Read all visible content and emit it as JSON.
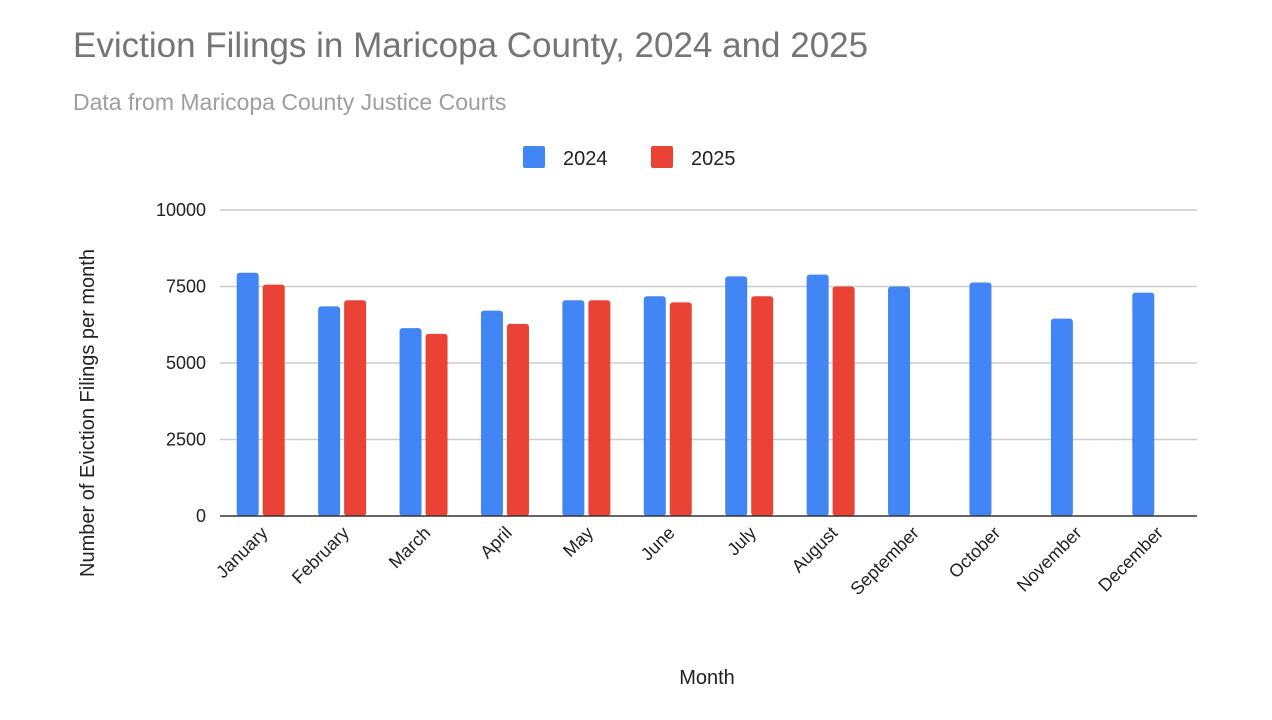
{
  "chart_data": {
    "type": "bar",
    "title": "Eviction Filings in Maricopa County, 2024 and 2025",
    "subtitle": "Data from Maricopa County Justice Courts",
    "xlabel": "Month",
    "ylabel": "Number of Eviction Filings per month",
    "ylim": [
      0,
      10000
    ],
    "yticks": [
      0,
      2500,
      5000,
      7500,
      10000
    ],
    "grid": true,
    "legend_position": "top",
    "categories": [
      "January",
      "February",
      "March",
      "April",
      "May",
      "June",
      "July",
      "August",
      "September",
      "October",
      "November",
      "December"
    ],
    "series": [
      {
        "name": "2024",
        "color": "#4285f4",
        "values": [
          7950,
          6850,
          6140,
          6710,
          7050,
          7180,
          7830,
          7890,
          7500,
          7630,
          6450,
          7300
        ]
      },
      {
        "name": "2025",
        "color": "#ea4335",
        "values": [
          7560,
          7050,
          5950,
          6280,
          7050,
          6980,
          7180,
          7500,
          null,
          null,
          null,
          null
        ]
      }
    ]
  }
}
